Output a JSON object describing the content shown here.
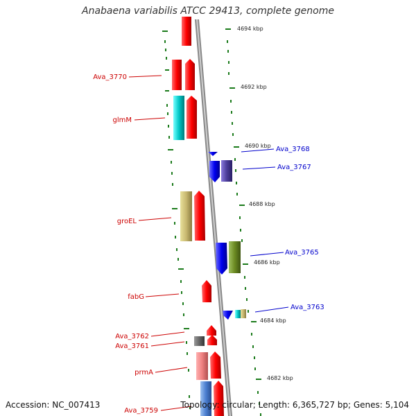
{
  "title": "Anabaena variabilis ATCC 29413, complete genome",
  "footer": {
    "accession": "Accession: NC_007413",
    "info": "Topology: circular; Length: 6,365,727 bp; Genes: 5,104"
  },
  "ticks": [
    "4694 kbp",
    "4692 kbp",
    "4690 kbp",
    "4688 kbp",
    "4686 kbp",
    "4684 kbp",
    "4682 kbp"
  ],
  "left_labels": [
    "Ava_3770",
    "glmM",
    "groEL",
    "fabG",
    "Ava_3762",
    "Ava_3761",
    "prmA",
    "Ava_3759"
  ],
  "right_labels": [
    "Ava_3768",
    "Ava_3767",
    "Ava_3765",
    "Ava_3763"
  ],
  "colors": {
    "left_label": "#cc0000",
    "right_label": "#0000cc",
    "backbone": "#888888",
    "dots": "#1a7a1a"
  }
}
